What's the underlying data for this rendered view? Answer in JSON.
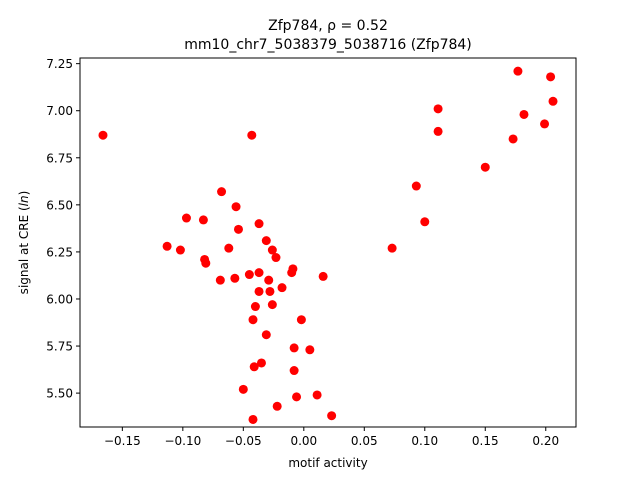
{
  "chart_data": {
    "type": "scatter",
    "title_line1": "Zfp784, ρ = 0.52",
    "title_line2": "mm10_chr7_5038379_5038716 (Zfp784)",
    "xlabel": "motif activity",
    "ylabel_prefix": "signal at CRE (",
    "ylabel_italic": "ln",
    "ylabel_suffix": ")",
    "xlim": [
      -0.185,
      0.225
    ],
    "ylim": [
      5.32,
      7.28
    ],
    "xticks": [
      -0.15,
      -0.1,
      -0.05,
      0.0,
      0.05,
      0.1,
      0.15,
      0.2
    ],
    "xtick_labels": [
      "−0.15",
      "−0.10",
      "−0.05",
      "0.00",
      "0.05",
      "0.10",
      "0.15",
      "0.20"
    ],
    "yticks": [
      5.5,
      5.75,
      6.0,
      6.25,
      6.5,
      6.75,
      7.0,
      7.25
    ],
    "ytick_labels": [
      "5.50",
      "5.75",
      "6.00",
      "6.25",
      "6.50",
      "6.75",
      "7.00",
      "7.25"
    ],
    "grid": false,
    "marker_color": "#ff0000",
    "points": [
      {
        "x": -0.166,
        "y": 6.87
      },
      {
        "x": -0.043,
        "y": 6.87
      },
      {
        "x": -0.068,
        "y": 6.57
      },
      {
        "x": -0.056,
        "y": 6.49
      },
      {
        "x": -0.097,
        "y": 6.43
      },
      {
        "x": -0.083,
        "y": 6.42
      },
      {
        "x": -0.037,
        "y": 6.4
      },
      {
        "x": -0.054,
        "y": 6.37
      },
      {
        "x": -0.031,
        "y": 6.31
      },
      {
        "x": -0.113,
        "y": 6.28
      },
      {
        "x": -0.102,
        "y": 6.26
      },
      {
        "x": -0.062,
        "y": 6.27
      },
      {
        "x": -0.026,
        "y": 6.26
      },
      {
        "x": -0.023,
        "y": 6.22
      },
      {
        "x": -0.082,
        "y": 6.21
      },
      {
        "x": -0.081,
        "y": 6.19
      },
      {
        "x": -0.009,
        "y": 6.16
      },
      {
        "x": -0.01,
        "y": 6.14
      },
      {
        "x": -0.037,
        "y": 6.14
      },
      {
        "x": -0.045,
        "y": 6.13
      },
      {
        "x": -0.057,
        "y": 6.11
      },
      {
        "x": -0.069,
        "y": 6.1
      },
      {
        "x": -0.029,
        "y": 6.1
      },
      {
        "x": 0.016,
        "y": 6.12
      },
      {
        "x": -0.018,
        "y": 6.06
      },
      {
        "x": -0.037,
        "y": 6.04
      },
      {
        "x": -0.028,
        "y": 6.04
      },
      {
        "x": -0.04,
        "y": 5.96
      },
      {
        "x": -0.026,
        "y": 5.97
      },
      {
        "x": -0.042,
        "y": 5.89
      },
      {
        "x": -0.002,
        "y": 5.89
      },
      {
        "x": -0.031,
        "y": 5.81
      },
      {
        "x": -0.008,
        "y": 5.74
      },
      {
        "x": 0.005,
        "y": 5.73
      },
      {
        "x": -0.035,
        "y": 5.66
      },
      {
        "x": -0.041,
        "y": 5.64
      },
      {
        "x": -0.008,
        "y": 5.62
      },
      {
        "x": -0.05,
        "y": 5.52
      },
      {
        "x": -0.006,
        "y": 5.48
      },
      {
        "x": 0.011,
        "y": 5.49
      },
      {
        "x": -0.022,
        "y": 5.43
      },
      {
        "x": 0.023,
        "y": 5.38
      },
      {
        "x": -0.042,
        "y": 5.36
      },
      {
        "x": 0.073,
        "y": 6.27
      },
      {
        "x": 0.093,
        "y": 6.6
      },
      {
        "x": 0.1,
        "y": 6.41
      },
      {
        "x": 0.111,
        "y": 6.89
      },
      {
        "x": 0.111,
        "y": 7.01
      },
      {
        "x": 0.15,
        "y": 6.7
      },
      {
        "x": 0.173,
        "y": 6.85
      },
      {
        "x": 0.177,
        "y": 7.21
      },
      {
        "x": 0.182,
        "y": 6.98
      },
      {
        "x": 0.199,
        "y": 6.93
      },
      {
        "x": 0.204,
        "y": 7.18
      },
      {
        "x": 0.206,
        "y": 7.05
      }
    ]
  }
}
